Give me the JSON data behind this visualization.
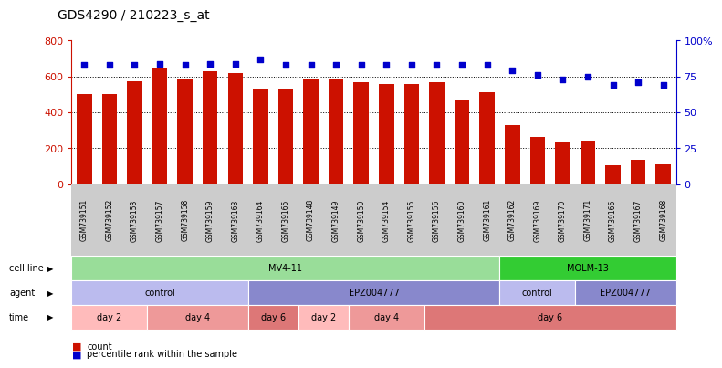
{
  "title": "GDS4290 / 210223_s_at",
  "samples": [
    "GSM739151",
    "GSM739152",
    "GSM739153",
    "GSM739157",
    "GSM739158",
    "GSM739159",
    "GSM739163",
    "GSM739164",
    "GSM739165",
    "GSM739148",
    "GSM739149",
    "GSM739150",
    "GSM739154",
    "GSM739155",
    "GSM739156",
    "GSM739160",
    "GSM739161",
    "GSM739162",
    "GSM739169",
    "GSM739170",
    "GSM739171",
    "GSM739166",
    "GSM739167",
    "GSM739168"
  ],
  "counts": [
    500,
    500,
    575,
    650,
    590,
    630,
    620,
    530,
    530,
    590,
    590,
    570,
    560,
    560,
    570,
    470,
    510,
    330,
    265,
    235,
    245,
    105,
    135,
    110
  ],
  "percentiles": [
    83,
    83,
    83,
    84,
    83,
    84,
    84,
    87,
    83,
    83,
    83,
    83,
    83,
    83,
    83,
    83,
    83,
    79,
    76,
    73,
    75,
    69,
    71,
    69
  ],
  "bar_color": "#cc1100",
  "dot_color": "#0000cc",
  "grid_color": "#000000",
  "left_axis_color": "#cc1100",
  "right_axis_color": "#0000cc",
  "ylim_left": [
    0,
    800
  ],
  "ylim_right": [
    0,
    100
  ],
  "left_yticks": [
    0,
    200,
    400,
    600,
    800
  ],
  "right_yticks": [
    0,
    25,
    50,
    75,
    100
  ],
  "right_yticklabels": [
    "0",
    "25",
    "50",
    "75",
    "100%"
  ],
  "cell_line_data": [
    {
      "label": "MV4-11",
      "start": 0,
      "end": 17,
      "color": "#99dd99"
    },
    {
      "label": "MOLM-13",
      "start": 17,
      "end": 24,
      "color": "#33cc33"
    }
  ],
  "agent_data": [
    {
      "label": "control",
      "start": 0,
      "end": 7,
      "color": "#bbbbee"
    },
    {
      "label": "EPZ004777",
      "start": 7,
      "end": 17,
      "color": "#8888cc"
    },
    {
      "label": "control",
      "start": 17,
      "end": 20,
      "color": "#bbbbee"
    },
    {
      "label": "EPZ004777",
      "start": 20,
      "end": 24,
      "color": "#8888cc"
    }
  ],
  "time_data": [
    {
      "label": "day 2",
      "start": 0,
      "end": 3,
      "color": "#ffbbbb"
    },
    {
      "label": "day 4",
      "start": 3,
      "end": 7,
      "color": "#ee9999"
    },
    {
      "label": "day 6",
      "start": 7,
      "end": 9,
      "color": "#dd7777"
    },
    {
      "label": "day 2",
      "start": 9,
      "end": 11,
      "color": "#ffbbbb"
    },
    {
      "label": "day 4",
      "start": 11,
      "end": 14,
      "color": "#ee9999"
    },
    {
      "label": "day 6",
      "start": 14,
      "end": 24,
      "color": "#dd7777"
    }
  ],
  "row_labels": [
    "cell line",
    "agent",
    "time"
  ],
  "legend_count_color": "#cc1100",
  "legend_pct_color": "#0000cc",
  "bg_color": "#ffffff",
  "xticklabel_bg": "#cccccc"
}
